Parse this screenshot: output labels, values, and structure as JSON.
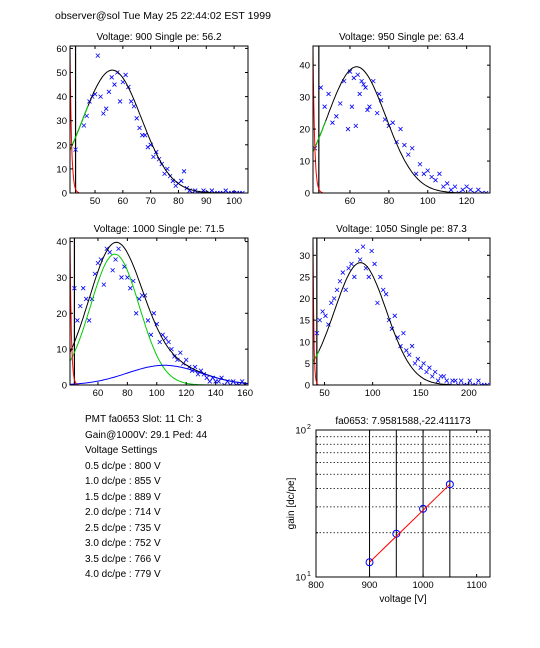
{
  "header": {
    "text": "observer@sol  Tue May 25 22:44:02 EST 1999"
  },
  "info": {
    "pmt_line": "PMT fa0653 Slot: 11 Ch: 3",
    "gain_line": "Gain@1000V: 29.1 Ped: 44",
    "settings_title": "Voltage Settings",
    "settings": [
      "0.5 dc/pe : 800 V",
      "1.0 dc/pe : 855 V",
      "1.5 dc/pe : 889 V",
      "2.0 dc/pe : 714 V",
      "2.5 dc/pe : 735 V",
      "3.0 dc/pe : 752 V",
      "3.5 dc/pe : 766 V",
      "4.0 dc/pe : 779 V"
    ]
  },
  "colors": {
    "data": "#0000ff",
    "fit": "#000000",
    "single_pe": "#00cc00",
    "pedestal": "#ff0000",
    "multi_pe": "#0000ff",
    "gain_line": "#ff0000"
  },
  "chart_data": [
    {
      "type": "scatter",
      "title": "Voltage: 900 Single pe: 56.2",
      "xlim": [
        41,
        105
      ],
      "ylim": [
        0,
        61
      ],
      "xticks": [
        50,
        60,
        70,
        80,
        90,
        100
      ],
      "yticks": [
        0,
        10,
        20,
        30,
        40,
        50,
        60
      ],
      "ped_line_x": 43,
      "series": [
        {
          "kind": "points",
          "x": [
            43,
            46,
            47,
            48,
            49,
            50,
            51,
            52,
            53,
            54,
            55,
            56,
            57,
            58,
            59,
            60,
            61,
            62,
            63,
            64,
            65,
            66,
            67,
            68,
            69,
            70,
            71,
            72,
            73,
            74,
            75,
            76,
            77,
            78,
            79,
            80,
            81,
            82,
            83,
            84,
            85,
            86,
            87,
            88,
            89,
            90,
            91,
            92,
            93,
            94,
            95,
            96,
            97,
            98,
            99,
            100,
            101,
            102,
            103
          ],
          "y": [
            18,
            28,
            32,
            38,
            40,
            41,
            57,
            40,
            33,
            35,
            42,
            48,
            45,
            50,
            38,
            46,
            49,
            44,
            38,
            36,
            31,
            27,
            24,
            24,
            19,
            20,
            15,
            17,
            14,
            12,
            8,
            10,
            7,
            5,
            3,
            4,
            5,
            9,
            2,
            1,
            0,
            1,
            0,
            0,
            1,
            0,
            0,
            1,
            0,
            0,
            0,
            0,
            1,
            0,
            0,
            0,
            0,
            0,
            0
          ]
        },
        {
          "kind": "gauss",
          "colorKey": "fit",
          "amp": 51,
          "mu": 56.2,
          "sigma": 10.5,
          "xfrom": 41,
          "xto": 105
        },
        {
          "kind": "gauss",
          "colorKey": "single_pe",
          "amp": 51,
          "mu": 56.2,
          "sigma": 10.5,
          "xfrom": 41,
          "xto": 47.5
        },
        {
          "kind": "pedestal",
          "colorKey": "pedestal",
          "xfrom": 41,
          "xto": 44.3,
          "top": 61
        }
      ]
    },
    {
      "type": "scatter",
      "title": "Voltage: 950 Single pe: 63.4",
      "xlim": [
        41,
        132
      ],
      "ylim": [
        0,
        46
      ],
      "xticks": [
        60,
        80,
        100,
        120
      ],
      "yticks": [
        0,
        10,
        20,
        30,
        40
      ],
      "ped_line_x": 44,
      "series": [
        {
          "kind": "points",
          "x": [
            42,
            45,
            47,
            49,
            51,
            53,
            55,
            57,
            59,
            60,
            61,
            62,
            63,
            64,
            65,
            66,
            67,
            68,
            69,
            70,
            72,
            74,
            75,
            76,
            78,
            80,
            82,
            84,
            86,
            88,
            90,
            92,
            94,
            96,
            98,
            100,
            102,
            104,
            106,
            108,
            110,
            112,
            114,
            116,
            118,
            120,
            122,
            124,
            126,
            128,
            130
          ],
          "y": [
            14,
            33,
            27,
            31,
            22,
            24,
            28,
            35,
            20,
            38,
            27,
            36,
            21,
            37,
            31,
            35,
            34,
            33,
            26,
            27,
            35,
            25,
            31,
            29,
            23,
            21,
            22,
            16,
            20,
            15,
            12,
            14,
            6,
            9,
            6,
            7,
            5,
            4,
            6,
            2,
            3,
            1,
            2,
            0,
            1,
            2,
            1,
            0,
            1,
            0,
            0
          ]
        },
        {
          "kind": "gauss",
          "colorKey": "fit",
          "amp": 39.5,
          "mu": 63.4,
          "sigma": 15,
          "xfrom": 41,
          "xto": 132
        },
        {
          "kind": "gauss",
          "colorKey": "single_pe",
          "amp": 39.5,
          "mu": 63.4,
          "sigma": 15,
          "xfrom": 41,
          "xto": 47.5
        },
        {
          "kind": "pedestal",
          "colorKey": "pedestal",
          "xfrom": 41,
          "xto": 46,
          "top": 46
        }
      ]
    },
    {
      "type": "scatter",
      "title": "Voltage: 1000 Single pe: 71.5",
      "xlim": [
        41,
        162
      ],
      "ylim": [
        0,
        41
      ],
      "xticks": [
        60,
        80,
        100,
        120,
        140,
        160
      ],
      "yticks": [
        0,
        10,
        20,
        30,
        40
      ],
      "ped_line_x": 44,
      "series": [
        {
          "kind": "points",
          "x": [
            44,
            46,
            48,
            50,
            52,
            54,
            56,
            58,
            60,
            62,
            64,
            66,
            68,
            70,
            72,
            74,
            76,
            78,
            80,
            82,
            84,
            86,
            88,
            90,
            92,
            94,
            96,
            98,
            100,
            102,
            104,
            106,
            108,
            110,
            112,
            114,
            116,
            118,
            120,
            122,
            124,
            126,
            128,
            130,
            132,
            134,
            136,
            138,
            140,
            142,
            144,
            146,
            148,
            150,
            152,
            154,
            156,
            158,
            160
          ],
          "y": [
            27,
            18,
            22,
            27,
            24,
            18,
            24,
            31,
            34,
            35,
            28,
            38,
            37,
            32,
            35,
            38,
            30,
            33,
            30,
            27,
            29,
            20,
            24,
            25,
            25,
            18,
            14,
            20,
            17,
            12,
            14,
            13,
            12,
            10,
            8,
            7,
            9,
            6,
            7,
            5,
            4,
            5,
            3,
            4,
            3,
            2,
            1,
            2,
            1,
            1,
            2,
            0,
            1,
            0,
            1,
            0,
            0,
            1,
            0
          ]
        },
        {
          "kind": "gauss",
          "colorKey": "fit",
          "amp": 37.5,
          "mu": 71.5,
          "sigma": 18,
          "xfrom": 41,
          "xto": 162,
          "addGauss": {
            "amp": 5.5,
            "mu": 105,
            "sigma": 25
          }
        },
        {
          "kind": "gauss",
          "colorKey": "single_pe",
          "amp": 36.5,
          "mu": 71.5,
          "sigma": 16.5,
          "xfrom": 41,
          "xto": 162
        },
        {
          "kind": "gauss",
          "colorKey": "multi_pe",
          "amp": 5.5,
          "mu": 105,
          "sigma": 25,
          "xfrom": 41,
          "xto": 162
        },
        {
          "kind": "pedestal",
          "colorKey": "pedestal",
          "xfrom": 41,
          "xto": 46.5,
          "top": 41
        }
      ]
    },
    {
      "type": "scatter",
      "title": "Voltage: 1050 Single pe: 87.3",
      "xlim": [
        38,
        222
      ],
      "ylim": [
        0,
        34
      ],
      "xticks": [
        50,
        100,
        150,
        200
      ],
      "yticks": [
        0,
        5,
        10,
        15,
        20,
        25,
        30
      ],
      "ped_line_x": 42,
      "series": [
        {
          "kind": "points",
          "x": [
            42,
            45,
            48,
            51,
            54,
            57,
            60,
            63,
            66,
            69,
            72,
            75,
            78,
            81,
            84,
            87,
            90,
            93,
            96,
            99,
            102,
            105,
            108,
            111,
            114,
            117,
            120,
            123,
            126,
            129,
            132,
            135,
            138,
            141,
            144,
            147,
            150,
            153,
            156,
            159,
            162,
            165,
            168,
            171,
            174,
            177,
            180,
            183,
            186,
            189,
            192,
            195,
            198,
            201,
            204,
            207,
            210,
            213,
            216,
            219
          ],
          "y": [
            12,
            15,
            17,
            16,
            14,
            19,
            20,
            22,
            24,
            26,
            22,
            27,
            28,
            25,
            31,
            29,
            32,
            27,
            25,
            31,
            28,
            19,
            25,
            22,
            21,
            15,
            13,
            16,
            11,
            9,
            12,
            8,
            7,
            9,
            5,
            6,
            4,
            5,
            3,
            4,
            2,
            3,
            1,
            2,
            2,
            1,
            0,
            1,
            1,
            0,
            1,
            0,
            0,
            1,
            0,
            0,
            1,
            0,
            0,
            0
          ]
        },
        {
          "kind": "gauss",
          "colorKey": "fit",
          "amp": 28.3,
          "mu": 87.3,
          "sigma": 27,
          "xfrom": 38,
          "xto": 222
        },
        {
          "kind": "gauss",
          "colorKey": "single_pe",
          "amp": 28.3,
          "mu": 87.3,
          "sigma": 27,
          "xfrom": 38,
          "xto": 44
        },
        {
          "kind": "pedestal",
          "colorKey": "pedestal",
          "xfrom": 38,
          "xto": 43.5,
          "top": 34
        }
      ]
    },
    {
      "type": "line",
      "title": "fa0653: 7.9581588,-22.411173",
      "xlabel": "voltage [V]",
      "ylabel": "gain [dc/pe]",
      "xlim": [
        800,
        1125
      ],
      "ylim": [
        10,
        100
      ],
      "yscale": "log",
      "xticks": [
        800,
        900,
        1000,
        1100
      ],
      "ytick_labels": [
        {
          "value": 10,
          "base": "10",
          "exp": "1"
        },
        {
          "value": 100,
          "base": "10",
          "exp": "2"
        }
      ],
      "vlines": [
        900,
        950,
        1000,
        1050
      ],
      "grid_y": [
        20,
        30,
        40,
        50,
        60,
        70,
        80,
        90
      ],
      "series": [
        {
          "name": "",
          "kind": "points",
          "x": [
            900,
            950,
            1000,
            1050
          ],
          "y": [
            12.6,
            19.7,
            29.1,
            42.7
          ]
        },
        {
          "name": "",
          "kind": "fitline",
          "x": [
            900,
            1050
          ],
          "y": [
            12.6,
            42.7
          ]
        }
      ]
    }
  ]
}
